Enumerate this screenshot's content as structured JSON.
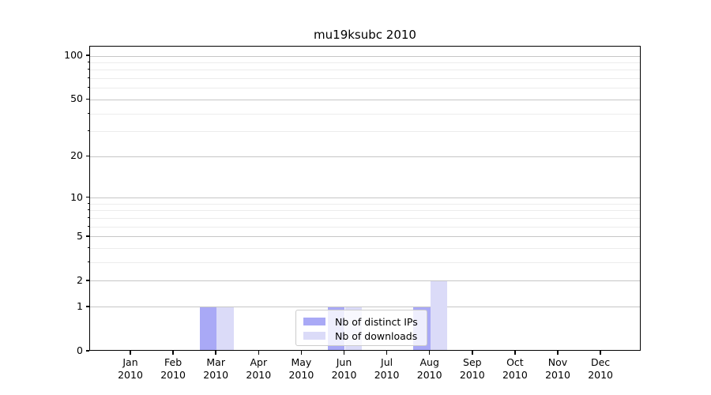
{
  "chart_data": {
    "type": "bar",
    "title": "mu19ksubc 2010",
    "categories": [
      "Jan",
      "Feb",
      "Mar",
      "Apr",
      "May",
      "Jun",
      "Jul",
      "Aug",
      "Sep",
      "Oct",
      "Nov",
      "Dec"
    ],
    "x_year_label": "2010",
    "series": [
      {
        "name": "Nb of distinct IPs",
        "color": "#a9a9f6",
        "values": [
          0,
          0,
          1,
          0,
          0,
          1,
          0,
          1,
          0,
          0,
          0,
          0
        ]
      },
      {
        "name": "Nb of downloads",
        "color": "#dbdbf8",
        "values": [
          0,
          0,
          1,
          0,
          0,
          1,
          0,
          2,
          0,
          0,
          0,
          0
        ]
      }
    ],
    "y_scale": "log(1+x)",
    "y_major_ticks": [
      0,
      1,
      2,
      5,
      10,
      20,
      50,
      100
    ],
    "y_minor_ticks": [
      3,
      4,
      6,
      7,
      8,
      9,
      30,
      40,
      60,
      70,
      80,
      90
    ],
    "ylim": [
      0,
      103
    ],
    "grid": true,
    "legend_position": "lower center",
    "colors": {
      "grid_major": "#c6c6c6",
      "grid_minor": "#ececec",
      "spine": "#000000",
      "legend_border": "#cccccc"
    }
  }
}
